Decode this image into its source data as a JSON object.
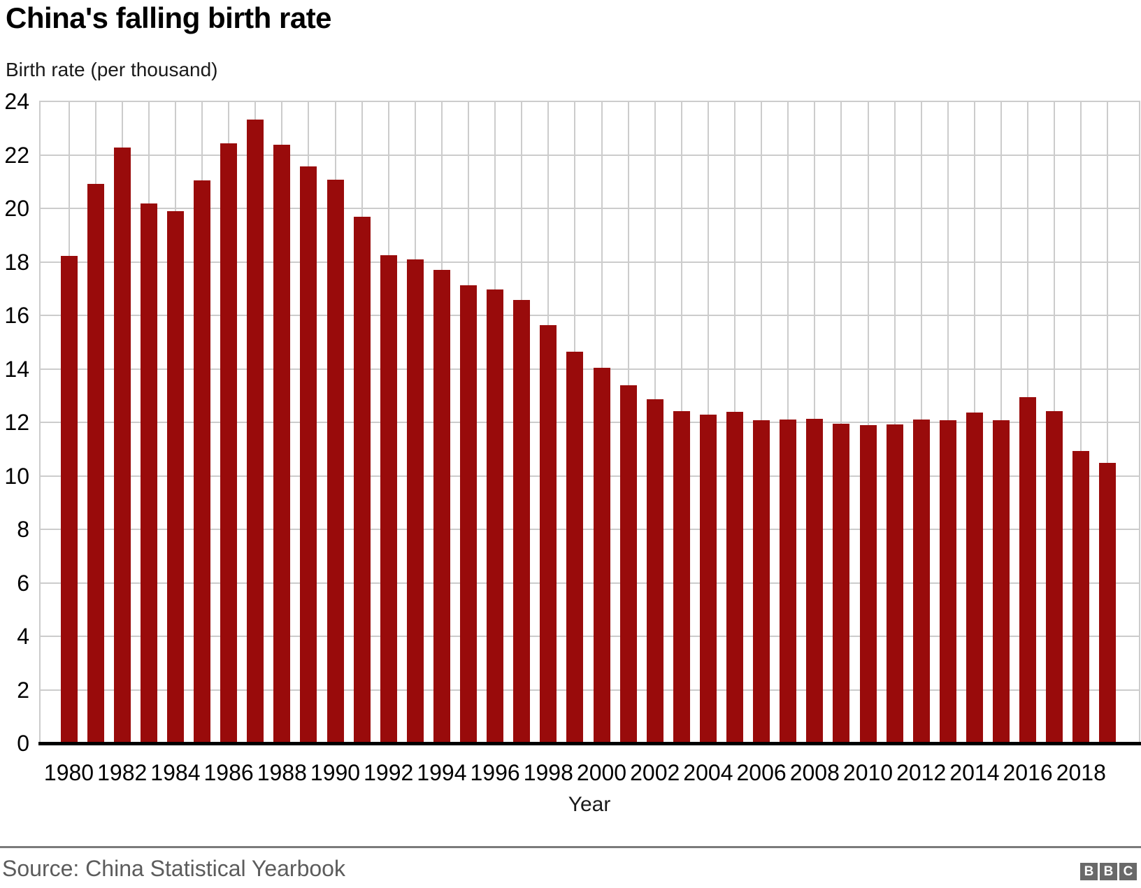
{
  "header": {
    "title": "China's falling birth rate",
    "unit_label": "Birth rate (per thousand)"
  },
  "chart_data": {
    "type": "bar",
    "title": "China's falling birth rate",
    "ylabel": "Birth rate (per thousand)",
    "xlabel": "Year",
    "ylim": [
      0,
      24
    ],
    "ytick_step": 2,
    "xtick_every": 2,
    "grid": "horizontal lines every 2 units; vertical line at each year behind bars; light gray plot border on top/left/right; thick black baseline at 0",
    "legend": "none",
    "categories": [
      1980,
      1981,
      1982,
      1983,
      1984,
      1985,
      1986,
      1987,
      1988,
      1989,
      1990,
      1991,
      1992,
      1993,
      1994,
      1995,
      1996,
      1997,
      1998,
      1999,
      2000,
      2001,
      2002,
      2003,
      2004,
      2005,
      2006,
      2007,
      2008,
      2009,
      2010,
      2011,
      2012,
      2013,
      2014,
      2015,
      2016,
      2017,
      2018,
      2019
    ],
    "values": [
      18.21,
      20.91,
      22.28,
      20.19,
      19.9,
      21.04,
      22.43,
      23.33,
      22.37,
      21.58,
      21.06,
      19.68,
      18.24,
      18.09,
      17.7,
      17.12,
      16.98,
      16.57,
      15.64,
      14.64,
      14.03,
      13.38,
      12.86,
      12.41,
      12.29,
      12.4,
      12.09,
      12.1,
      12.14,
      11.95,
      11.9,
      11.93,
      12.1,
      12.08,
      12.37,
      12.07,
      12.95,
      12.43,
      10.94,
      10.48
    ],
    "bar_color": "#990b0b",
    "gridline_color": "#cccccc",
    "axis_color": "#000000",
    "tick_label_color": "#000000"
  },
  "footer": {
    "source": "Source: China Statistical Yearbook",
    "source_color": "#5c5c5c",
    "divider_color": "#7a7a7a",
    "logo_letters": [
      "B",
      "B",
      "C"
    ],
    "logo_box_color": "#696969",
    "logo_letter_color": "#ffffff"
  }
}
